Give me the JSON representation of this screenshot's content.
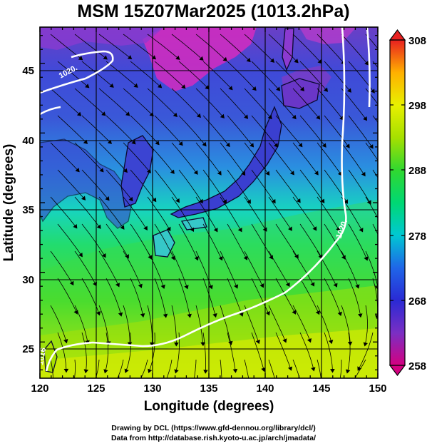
{
  "title": "MSM 15Z07Mar2025 (1013.2hPa)",
  "x_axis": {
    "label": "Longitude (degrees)",
    "ticks": [
      "120",
      "125",
      "130",
      "135",
      "140",
      "145",
      "150"
    ],
    "range": [
      120,
      150
    ]
  },
  "y_axis": {
    "label": "Latitude  (degrees)",
    "ticks": [
      "25",
      "30",
      "35",
      "40",
      "45"
    ],
    "range": [
      22.4,
      47.6
    ]
  },
  "colorbar": {
    "ticks": [
      "308",
      "298",
      "288",
      "278",
      "268",
      "258"
    ],
    "range": [
      258,
      308
    ],
    "colors": [
      "#d40080",
      "#7a2fc4",
      "#2a2ad4",
      "#1f66e8",
      "#00c8d2",
      "#00d873",
      "#30d830",
      "#a6e000",
      "#e8f000",
      "#ffb000",
      "#e82020"
    ]
  },
  "contours": {
    "labels": [
      "1020.",
      "1020.",
      "1016"
    ]
  },
  "credit": {
    "line1": "Drawing by DCL (https://www.gfd-dennou.org/library/dcl/)",
    "line2": "Data from http://database.rish.kyoto-u.ac.jp/arch/jmadata/"
  },
  "chart_data": {
    "type": "heatmap",
    "title": "MSM 15Z07Mar2025 (1013.2hPa)",
    "xlabel": "Longitude (degrees)",
    "ylabel": "Latitude  (degrees)",
    "xlim": [
      120,
      150
    ],
    "ylim": [
      22.4,
      47.6
    ],
    "colorbar_range": [
      258,
      308
    ],
    "grid": true,
    "overlays": [
      "temperature shading",
      "wind streamlines",
      "pressure contours",
      "coastlines"
    ]
  }
}
